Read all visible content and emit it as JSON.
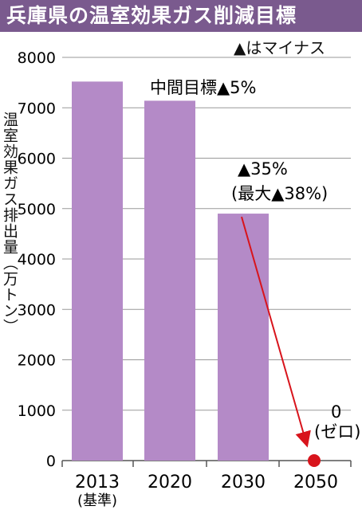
{
  "title": "兵庫県の温室効果ガス削減目標",
  "note": "▲はマイナス",
  "colors": {
    "title_bg": "#7a5a8e",
    "bar": "#b48ac7",
    "arrow": "#d8141c",
    "grid": "#999999"
  },
  "chart_data": {
    "type": "bar",
    "title": "兵庫県の温室効果ガス削減目標",
    "ylabel": "温室効果ガス排出量（万トン）",
    "xlabel": "",
    "categories": [
      "2013",
      "2020",
      "2030",
      "2050"
    ],
    "category_sub": [
      "(基準)",
      "",
      "",
      ""
    ],
    "values": [
      7520,
      7140,
      4900,
      0
    ],
    "ylim": [
      0,
      8000
    ],
    "yticks": [
      "0",
      "1000",
      "2000",
      "3000",
      "4000",
      "5000",
      "6000",
      "7000",
      "8000"
    ],
    "grid": true,
    "annotations": {
      "mid": "中間目標▲5%",
      "target_2030_a": "▲35%",
      "target_2030_b": "(最大▲38%)",
      "zero_a": "0",
      "zero_b": "(ゼロ)"
    }
  }
}
